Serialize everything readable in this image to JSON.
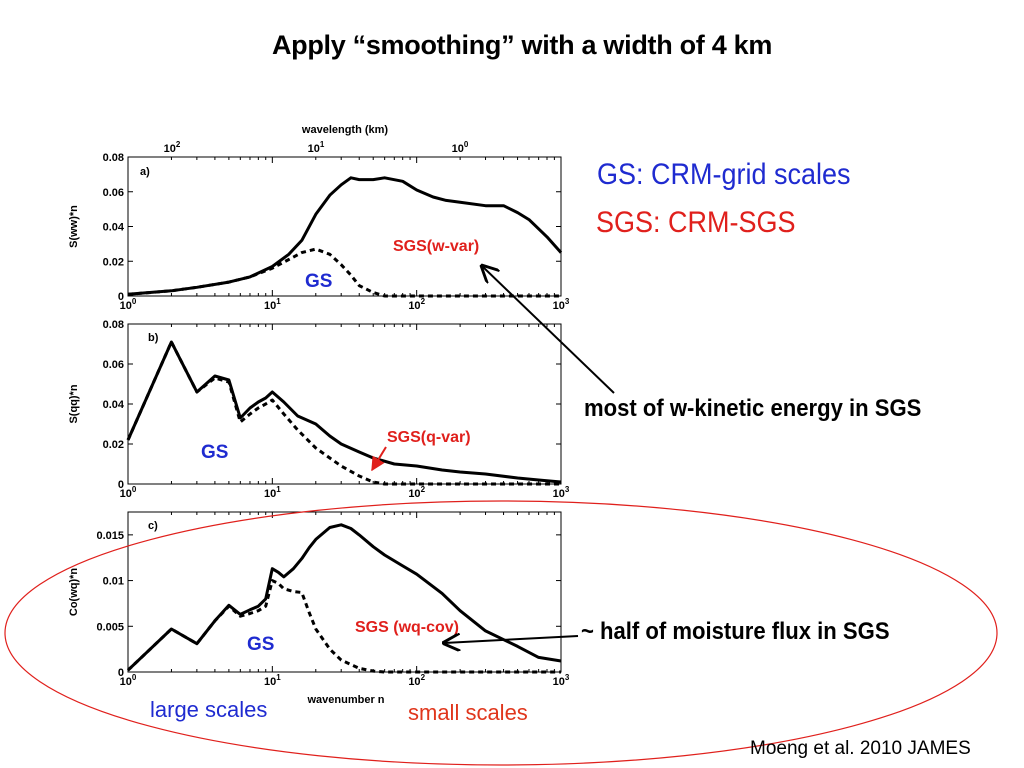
{
  "slide": {
    "title": "Apply “smoothing” with a width of 4 km",
    "gs_legend": "GS:   CRM-grid scales",
    "sgs_legend": "SGS: CRM-SGS",
    "kinetic_note": "most of w-kinetic energy in SGS",
    "moisture_note": "~ half of moisture flux in SGS",
    "large_scales": "large scales",
    "small_scales": "small scales",
    "citation": "Moeng et al. 2010 JAMES",
    "colors": {
      "gs": "#1f2bd0",
      "sgs": "#e0201c",
      "ellipse": "#e0201c",
      "arrow_red": "#e0201c"
    }
  },
  "top_axis": {
    "label": "wavelength (km)",
    "ticks": [
      {
        "base": "10",
        "exp": "2"
      },
      {
        "base": "10",
        "exp": "1"
      },
      {
        "base": "10",
        "exp": "0"
      }
    ]
  },
  "bottom_axis_label": "wavenumber n",
  "x_ticks": [
    {
      "base": "10",
      "exp": "0"
    },
    {
      "base": "10",
      "exp": "1"
    },
    {
      "base": "10",
      "exp": "2"
    },
    {
      "base": "10",
      "exp": "3"
    }
  ],
  "chart_data": [
    {
      "type": "line",
      "panel": "a)",
      "ylabel": "S(ww)*n",
      "xscale": "log",
      "xlim": [
        1,
        1000
      ],
      "ylim": [
        0,
        0.08
      ],
      "ytick_labels": [
        "0",
        "0.02",
        "0.04",
        "0.06",
        "0.08"
      ],
      "ytick_values": [
        0,
        0.02,
        0.04,
        0.06,
        0.08
      ],
      "annotations": {
        "gs": "GS",
        "sgs": "SGS(w-var)"
      },
      "series": [
        {
          "style": "solid",
          "x": [
            1,
            2,
            3,
            5,
            7,
            10,
            13,
            16,
            20,
            25,
            30,
            35,
            40,
            50,
            60,
            80,
            100,
            130,
            160,
            200,
            300,
            400,
            500,
            600,
            800,
            1000
          ],
          "y": [
            0.001,
            0.003,
            0.005,
            0.008,
            0.011,
            0.017,
            0.024,
            0.032,
            0.047,
            0.058,
            0.064,
            0.068,
            0.067,
            0.067,
            0.068,
            0.066,
            0.061,
            0.057,
            0.055,
            0.054,
            0.052,
            0.052,
            0.048,
            0.044,
            0.034,
            0.025
          ]
        },
        {
          "style": "dashed",
          "x": [
            1,
            2,
            3,
            5,
            7,
            10,
            13,
            16,
            20,
            25,
            30,
            35,
            40,
            50,
            60,
            80,
            100,
            200,
            500,
            1000
          ],
          "y": [
            0.001,
            0.003,
            0.005,
            0.008,
            0.011,
            0.016,
            0.021,
            0.025,
            0.027,
            0.024,
            0.018,
            0.012,
            0.006,
            0.002,
            0.0,
            0.0,
            0.0,
            0.0,
            0.0,
            0.0
          ]
        }
      ]
    },
    {
      "type": "line",
      "panel": "b)",
      "ylabel": "S(qq)*n",
      "xscale": "log",
      "xlim": [
        1,
        1000
      ],
      "ylim": [
        0,
        0.08
      ],
      "ytick_labels": [
        "0",
        "0.02",
        "0.04",
        "0.06",
        "0.08"
      ],
      "ytick_values": [
        0,
        0.02,
        0.04,
        0.06,
        0.08
      ],
      "annotations": {
        "gs": "GS",
        "sgs": "SGS(q-var)"
      },
      "series": [
        {
          "style": "solid",
          "x": [
            1,
            2,
            3,
            4,
            5,
            6,
            7,
            8,
            9,
            10,
            12,
            15,
            20,
            25,
            30,
            40,
            50,
            70,
            100,
            150,
            200,
            300,
            500,
            700,
            1000
          ],
          "y": [
            0.022,
            0.071,
            0.046,
            0.054,
            0.052,
            0.033,
            0.038,
            0.041,
            0.043,
            0.046,
            0.041,
            0.034,
            0.03,
            0.024,
            0.02,
            0.016,
            0.013,
            0.01,
            0.009,
            0.007,
            0.006,
            0.005,
            0.003,
            0.002,
            0.001
          ]
        },
        {
          "style": "dashed",
          "x": [
            1,
            2,
            3,
            4,
            5,
            6,
            7,
            8,
            9,
            10,
            12,
            15,
            20,
            25,
            30,
            40,
            50,
            60,
            80,
            100,
            1000
          ],
          "y": [
            0.022,
            0.071,
            0.046,
            0.053,
            0.051,
            0.031,
            0.035,
            0.038,
            0.04,
            0.042,
            0.035,
            0.027,
            0.018,
            0.013,
            0.009,
            0.004,
            0.001,
            0.0,
            0.0,
            0.0,
            0.0
          ]
        }
      ]
    },
    {
      "type": "line",
      "panel": "c)",
      "ylabel": "Co(wq)*n",
      "xscale": "log",
      "xlim": [
        1,
        1000
      ],
      "ylim": [
        0,
        0.0175
      ],
      "ytick_labels": [
        "0",
        "0.005",
        "0.01",
        "0.015"
      ],
      "ytick_values": [
        0,
        0.005,
        0.01,
        0.015
      ],
      "annotations": {
        "gs": "GS",
        "sgs": "SGS (wq-cov)"
      },
      "series": [
        {
          "style": "solid",
          "x": [
            1,
            2,
            3,
            4,
            5,
            6,
            7,
            8,
            9,
            10,
            11,
            12,
            14,
            16,
            18,
            20,
            25,
            30,
            35,
            40,
            50,
            60,
            80,
            100,
            150,
            200,
            300,
            500,
            700,
            1000
          ],
          "y": [
            0.0002,
            0.0047,
            0.0031,
            0.0056,
            0.0073,
            0.0063,
            0.0068,
            0.0072,
            0.008,
            0.0113,
            0.0109,
            0.0104,
            0.0113,
            0.0124,
            0.0136,
            0.0145,
            0.0158,
            0.0161,
            0.0157,
            0.015,
            0.0137,
            0.0128,
            0.0116,
            0.0107,
            0.0086,
            0.0067,
            0.0045,
            0.0028,
            0.0016,
            0.0012
          ]
        },
        {
          "style": "dashed",
          "x": [
            1,
            2,
            3,
            4,
            5,
            6,
            7,
            8,
            9,
            10,
            11,
            12,
            14,
            16,
            18,
            20,
            25,
            30,
            40,
            50,
            60,
            80,
            100,
            1000
          ],
          "y": [
            0.0002,
            0.0047,
            0.0031,
            0.0056,
            0.0072,
            0.0061,
            0.0064,
            0.0067,
            0.0072,
            0.01,
            0.0097,
            0.0091,
            0.0088,
            0.0087,
            0.0065,
            0.0047,
            0.0025,
            0.0013,
            0.0004,
            0.0001,
            0.0,
            0.0,
            0.0,
            0.0
          ]
        }
      ]
    }
  ]
}
